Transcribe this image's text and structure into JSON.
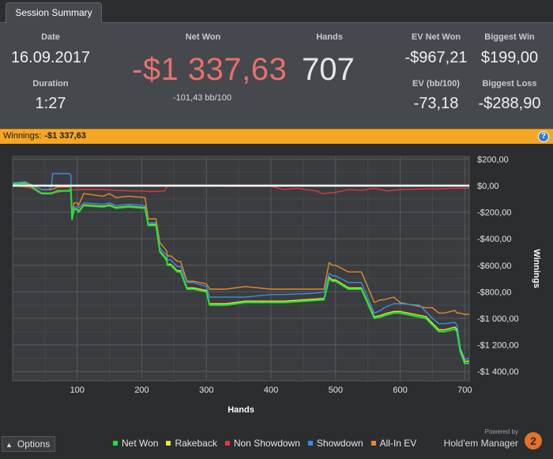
{
  "tab": {
    "label": "Session Summary"
  },
  "stats": {
    "date_label": "Date",
    "date_value": "16.09.2017",
    "duration_label": "Duration",
    "duration_value": "1:27",
    "net_won_label": "Net Won",
    "net_won_value": "-$1 337,63",
    "bb_per_100": "-101,43 bb/100",
    "hands_label": "Hands",
    "hands_value": "707",
    "ev_net_won_label": "EV Net Won",
    "ev_net_won_value": "-$967,21",
    "biggest_win_label": "Biggest Win",
    "biggest_win_value": "$199,00",
    "ev_bb_label": "EV (bb/100)",
    "ev_bb_value": "-73,18",
    "biggest_loss_label": "Biggest Loss",
    "biggest_loss_value": "-$288,90"
  },
  "winnings_bar": {
    "label": "Winnings:",
    "value": "-$1 337,63",
    "help_icon": "question-icon"
  },
  "colors": {
    "net_won": "#22e03a",
    "rakeback": "#f2e52a",
    "non_showdown": "#e0383c",
    "showdown": "#3b8ee0",
    "all_in_ev": "#e48a2c",
    "negative": "#e8706f",
    "banner": "#f5a623"
  },
  "chart_data": {
    "type": "line",
    "xlabel": "Hands",
    "ylabel": "Winnings",
    "xlim": [
      0,
      707
    ],
    "ylim": [
      -1470,
      220
    ],
    "x_ticks": [
      100,
      200,
      300,
      400,
      500,
      600,
      700
    ],
    "x_tick_labels": [
      "100",
      "200",
      "300",
      "400",
      "500",
      "600",
      "700"
    ],
    "y_ticks": [
      200,
      0,
      -200,
      -400,
      -600,
      -800,
      -1000,
      -1200,
      -1400
    ],
    "y_tick_labels": [
      "$200,00",
      "$0,00",
      "-$200,00",
      "-$400,00",
      "-$600,00",
      "-$800,00",
      "-$1 000,00",
      "-$1 200,00",
      "-$1 400,00"
    ],
    "grid": true,
    "series": [
      {
        "name": "Net Won",
        "x": [
          0,
          20,
          22,
          25,
          45,
          55,
          60,
          70,
          88,
          90,
          92,
          95,
          100,
          102,
          110,
          140,
          150,
          160,
          180,
          205,
          210,
          222,
          228,
          235,
          238,
          240,
          245,
          255,
          260,
          270,
          280,
          300,
          305,
          330,
          360,
          400,
          420,
          482,
          490,
          495,
          500,
          520,
          540,
          560,
          570,
          575,
          590,
          600,
          640,
          650,
          660,
          668,
          685,
          688,
          693,
          700,
          707
        ],
        "values": [
          10,
          15,
          10,
          5,
          -60,
          -60,
          -60,
          -40,
          -40,
          -20,
          -255,
          -180,
          -180,
          -200,
          -150,
          -160,
          -150,
          -170,
          -160,
          -170,
          -300,
          -300,
          -500,
          -540,
          -560,
          -600,
          -600,
          -650,
          -650,
          -780,
          -780,
          -800,
          -900,
          -900,
          -880,
          -880,
          -880,
          -860,
          -700,
          -720,
          -720,
          -780,
          -780,
          -1000,
          -990,
          -980,
          -960,
          -960,
          -1000,
          -1050,
          -1100,
          -1100,
          -1080,
          -1100,
          -1250,
          -1340,
          -1337
        ]
      },
      {
        "name": "Rakeback",
        "x": [
          0,
          20,
          22,
          25,
          45,
          55,
          60,
          70,
          88,
          90,
          92,
          95,
          100,
          102,
          110,
          140,
          150,
          160,
          180,
          205,
          210,
          222,
          228,
          235,
          238,
          240,
          245,
          255,
          260,
          270,
          280,
          300,
          305,
          330,
          360,
          400,
          420,
          482,
          490,
          495,
          500,
          520,
          540,
          560,
          570,
          575,
          590,
          600,
          640,
          650,
          660,
          668,
          685,
          688,
          693,
          700,
          707
        ],
        "values": [
          12,
          17,
          12,
          7,
          -57,
          -57,
          -57,
          -37,
          -37,
          -17,
          -250,
          -175,
          -175,
          -195,
          -145,
          -155,
          -145,
          -165,
          -155,
          -165,
          -293,
          -293,
          -493,
          -532,
          -552,
          -592,
          -592,
          -641,
          -641,
          -770,
          -770,
          -790,
          -890,
          -890,
          -870,
          -870,
          -870,
          -850,
          -690,
          -710,
          -710,
          -770,
          -770,
          -988,
          -978,
          -968,
          -948,
          -948,
          -987,
          -1037,
          -1086,
          -1086,
          -1066,
          -1086,
          -1235,
          -1325,
          -1322
        ]
      },
      {
        "name": "Non Showdown",
        "x": [
          0,
          20,
          30,
          40,
          45,
          60,
          80,
          100,
          140,
          180,
          200,
          215,
          235,
          240,
          260,
          300,
          340,
          400,
          420,
          440,
          470,
          480,
          500,
          520,
          540,
          560,
          580,
          600,
          640,
          660,
          680,
          707
        ],
        "values": [
          0,
          -10,
          -20,
          -50,
          -60,
          -60,
          -40,
          -30,
          -30,
          -40,
          -40,
          -45,
          -40,
          0,
          0,
          0,
          -5,
          -5,
          -30,
          -20,
          -40,
          -60,
          -50,
          -30,
          -35,
          -20,
          -40,
          -30,
          -25,
          -25,
          -20,
          -20
        ]
      },
      {
        "name": "Showdown",
        "x": [
          0,
          20,
          22,
          25,
          45,
          55,
          60,
          62,
          70,
          88,
          90,
          92,
          95,
          100,
          102,
          110,
          140,
          150,
          160,
          180,
          205,
          210,
          222,
          228,
          235,
          238,
          240,
          245,
          255,
          260,
          270,
          280,
          300,
          305,
          330,
          360,
          400,
          420,
          470,
          482,
          490,
          495,
          500,
          520,
          540,
          560,
          570,
          575,
          590,
          600,
          630,
          640,
          650,
          660,
          668,
          685,
          688,
          693,
          700,
          707
        ],
        "values": [
          20,
          30,
          20,
          10,
          -30,
          -30,
          -10,
          90,
          90,
          90,
          80,
          -230,
          -160,
          -160,
          -170,
          -130,
          -140,
          -130,
          -150,
          -140,
          -150,
          -280,
          -280,
          -470,
          -510,
          -520,
          -560,
          -560,
          -610,
          -610,
          -730,
          -730,
          -760,
          -840,
          -840,
          -840,
          -820,
          -820,
          -810,
          -800,
          -660,
          -680,
          -680,
          -730,
          -730,
          -960,
          -940,
          -920,
          -890,
          -890,
          -900,
          -950,
          -1000,
          -1040,
          -1040,
          -1030,
          -1050,
          -1220,
          -1310,
          -1300
        ]
      },
      {
        "name": "All-In EV",
        "x": [
          0,
          20,
          22,
          25,
          45,
          55,
          60,
          70,
          88,
          90,
          92,
          95,
          100,
          102,
          110,
          140,
          150,
          160,
          180,
          205,
          210,
          222,
          228,
          235,
          238,
          240,
          245,
          255,
          260,
          270,
          280,
          300,
          305,
          330,
          360,
          400,
          420,
          470,
          482,
          490,
          495,
          500,
          520,
          540,
          560,
          570,
          575,
          590,
          600,
          640,
          650,
          660,
          668,
          685,
          688,
          693,
          700,
          707
        ],
        "values": [
          20,
          25,
          20,
          15,
          -30,
          -30,
          -30,
          -10,
          -10,
          0,
          -200,
          -130,
          -130,
          -150,
          -60,
          -80,
          -60,
          -90,
          -80,
          -90,
          -250,
          -250,
          -430,
          -470,
          -490,
          -530,
          -530,
          -570,
          -570,
          -720,
          -720,
          -740,
          -780,
          -780,
          -760,
          -780,
          -780,
          -780,
          -780,
          -580,
          -600,
          -600,
          -650,
          -650,
          -880,
          -860,
          -860,
          -840,
          -880,
          -920,
          -920,
          -960,
          -960,
          -940,
          -960,
          -960,
          -970,
          -967
        ]
      }
    ]
  },
  "footer": {
    "options_label": "Options",
    "options_icon": "chevron-up-icon",
    "legend": [
      "Net Won",
      "Rakeback",
      "Non Showdown",
      "Showdown",
      "All-In EV"
    ],
    "powered_by": "Powered by",
    "brand_name": "Hold'em Manager",
    "brand_logo_text": "2"
  }
}
